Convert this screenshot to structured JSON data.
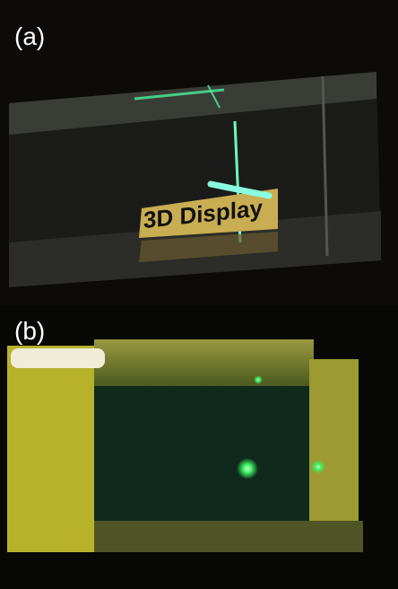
{
  "panels": [
    {
      "label": "(a)",
      "sign_text": "3D Display"
    },
    {
      "label": "(b)"
    }
  ]
}
